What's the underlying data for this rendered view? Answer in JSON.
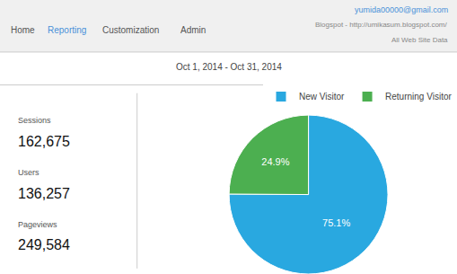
{
  "chart_data": {
    "type": "pie",
    "categories": [
      "New Visitor",
      "Returning Visitor"
    ],
    "values": [
      75.1,
      24.9
    ],
    "value_labels": [
      "75.1%",
      "24.9%"
    ],
    "colors": [
      "#29a8e0",
      "#4caf50"
    ],
    "data_labels": true,
    "legend": "upper right",
    "annotations": [
      "Home",
      "Reporting",
      "Customization",
      "Admin",
      "yumida00000@gmail.com",
      "Blogspot - http://umikasum.blogspot.com/",
      "All Web Site Data",
      "Oct 1, 2014 - Oct 31, 2014",
      "Sessions",
      "162,675",
      "Users",
      "136,257",
      "Pageviews",
      "249,584"
    ]
  }
}
